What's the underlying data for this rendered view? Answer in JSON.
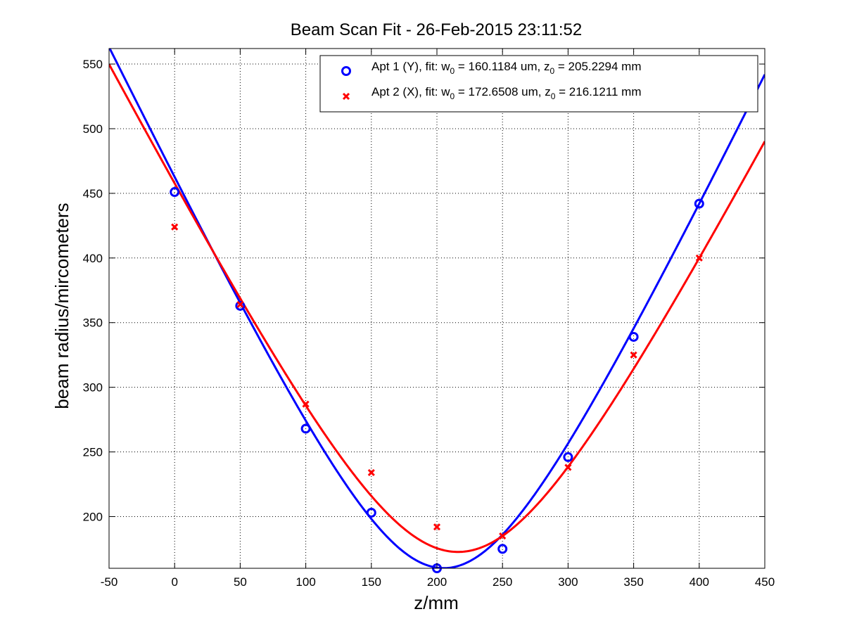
{
  "chart_data": {
    "type": "scatter",
    "title": "Beam Scan Fit - 26-Feb-2015 23:11:52",
    "xlabel": "z/mm",
    "ylabel": "beam radius/mircometers",
    "xlim": [
      -50,
      450
    ],
    "ylim": [
      160,
      562
    ],
    "x_ticks": [
      "-50",
      "0",
      "50",
      "100",
      "150",
      "200",
      "250",
      "300",
      "350",
      "400",
      "450"
    ],
    "y_ticks": [
      "200",
      "250",
      "300",
      "350",
      "400",
      "450",
      "500",
      "550"
    ],
    "grid": true,
    "legend_position": "top-right",
    "series": [
      {
        "legend_prefix": "Apt 1 (Y), fit: w",
        "legend_w0_value": " = 160.1184 um, z",
        "legend_z0_value": " = 205.2294 mm",
        "legend_sub": "0",
        "marker": "circle",
        "color": "#0000ff",
        "x": [
          0,
          50,
          100,
          150,
          200,
          250,
          300,
          350,
          400
        ],
        "y": [
          451,
          363,
          268,
          203,
          160,
          175,
          246,
          339,
          442
        ],
        "fit": {
          "w0": 160.1184,
          "z0": 205.2294
        }
      },
      {
        "legend_prefix": "Apt 2 (X), fit: w",
        "legend_w0_value": " = 172.6508 um, z",
        "legend_z0_value": " = 216.1211 mm",
        "legend_sub": "0",
        "marker": "x",
        "color": "#ff0000",
        "x": [
          0,
          50,
          100,
          150,
          200,
          250,
          300,
          350,
          400
        ],
        "y": [
          424,
          364,
          287,
          234,
          192,
          185,
          238,
          325,
          400
        ],
        "fit": {
          "w0": 172.6508,
          "z0": 216.1211
        }
      }
    ]
  }
}
